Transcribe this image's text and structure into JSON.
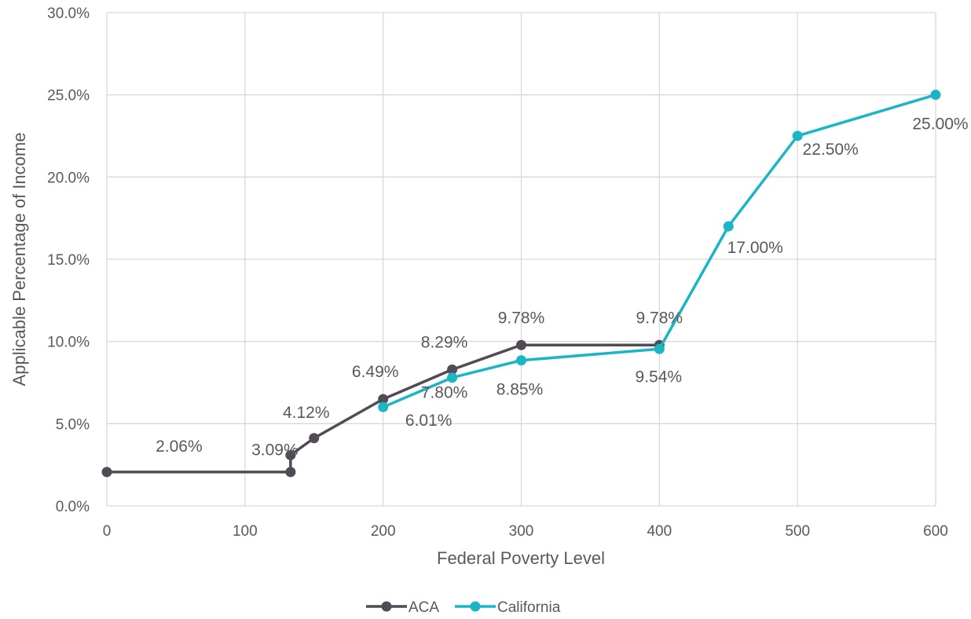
{
  "chart_data": {
    "type": "line",
    "title": "",
    "xlabel": "Federal Poverty Level",
    "ylabel": "Applicable Percentage of Income",
    "xlim": [
      0,
      600
    ],
    "ylim": [
      0,
      30
    ],
    "x_ticks": [
      0,
      100,
      200,
      300,
      400,
      500,
      600
    ],
    "x_tick_labels": [
      "0",
      "100",
      "200",
      "300",
      "400",
      "500",
      "600"
    ],
    "y_ticks": [
      0,
      5,
      10,
      15,
      20,
      25,
      30
    ],
    "y_tick_labels": [
      "0.0%",
      "5.0%",
      "10.0%",
      "15.0%",
      "20.0%",
      "25.0%",
      "30.0%"
    ],
    "grid": true,
    "legend_position": "bottom",
    "series": [
      {
        "name": "ACA",
        "color": "#524b55",
        "points": [
          {
            "x": 0,
            "y": 2.06,
            "label": ""
          },
          {
            "x": 133,
            "y": 2.06,
            "label": "2.06%"
          },
          {
            "x": 133,
            "y": 3.09,
            "label": "3.09%"
          },
          {
            "x": 150,
            "y": 4.12,
            "label": "4.12%"
          },
          {
            "x": 200,
            "y": 6.49,
            "label": "6.49%"
          },
          {
            "x": 250,
            "y": 8.29,
            "label": "8.29%"
          },
          {
            "x": 300,
            "y": 9.78,
            "label": "9.78%"
          },
          {
            "x": 400,
            "y": 9.78,
            "label": "9.78%"
          }
        ]
      },
      {
        "name": "California",
        "color": "#1bb5c6",
        "points": [
          {
            "x": 200,
            "y": 6.01,
            "label": "6.01%"
          },
          {
            "x": 250,
            "y": 7.8,
            "label": "7.80%"
          },
          {
            "x": 300,
            "y": 8.85,
            "label": "8.85%"
          },
          {
            "x": 400,
            "y": 9.54,
            "label": "9.54%"
          },
          {
            "x": 450,
            "y": 17.0,
            "label": "17.00%"
          },
          {
            "x": 500,
            "y": 22.5,
            "label": "22.50%"
          },
          {
            "x": 600,
            "y": 25.0,
            "label": "25.00%"
          }
        ]
      }
    ]
  }
}
